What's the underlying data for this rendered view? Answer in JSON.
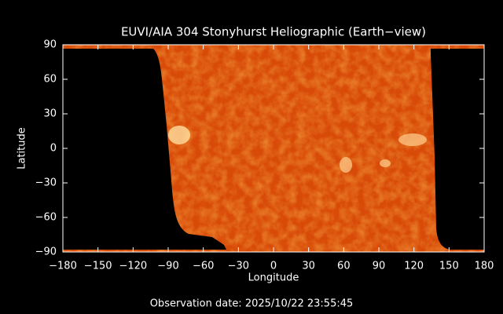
{
  "chart_data": {
    "type": "image",
    "title": "EUVI/AIA 304 Stonyhurst Heliographic (Earth−view)",
    "xlabel": "Longitude",
    "ylabel": "Latitude",
    "footer": "Observation date: 2025/10/22 23:55:45",
    "xlim": [
      -180,
      180
    ],
    "ylim": [
      -90,
      90
    ],
    "xticks": [
      {
        "value": -180,
        "label": "−180"
      },
      {
        "value": -150,
        "label": "−150"
      },
      {
        "value": -120,
        "label": "−120"
      },
      {
        "value": -90,
        "label": "−90"
      },
      {
        "value": -60,
        "label": "−60"
      },
      {
        "value": -30,
        "label": "−30"
      },
      0,
      30,
      60,
      90,
      120,
      150,
      180
    ],
    "yticks": [
      {
        "value": -90,
        "label": "−90"
      },
      {
        "value": -60,
        "label": "−60"
      },
      {
        "value": -30,
        "label": "−30"
      },
      0,
      30,
      60,
      90
    ]
  }
}
